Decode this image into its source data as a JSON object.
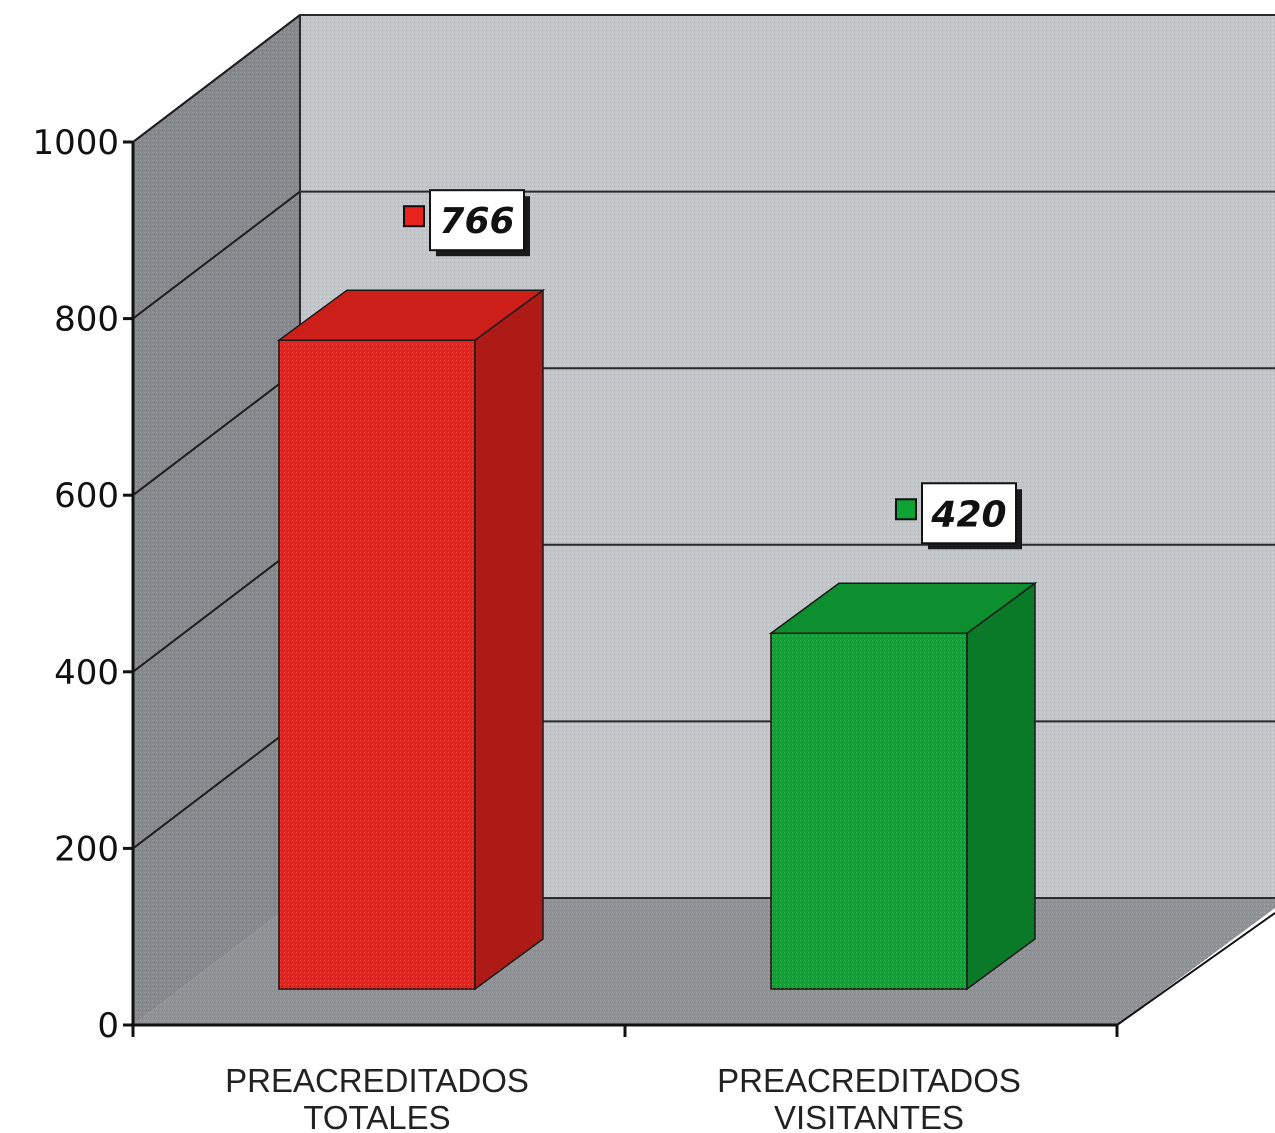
{
  "chart_data": {
    "type": "bar",
    "categories": [
      [
        "PREACREDITADOS",
        "TOTALES"
      ],
      [
        "PREACREDITADOS",
        "VISITANTES"
      ]
    ],
    "series": [
      {
        "values": [
          766,
          420
        ]
      }
    ],
    "data_labels": [
      "766",
      "420"
    ],
    "colors": [
      "#e8231d",
      "#0fa335"
    ],
    "ylim": [
      0,
      1000
    ],
    "yticks": [
      "0",
      "200",
      "400",
      "600",
      "800",
      "1000"
    ],
    "grid": true,
    "style": "3d"
  }
}
